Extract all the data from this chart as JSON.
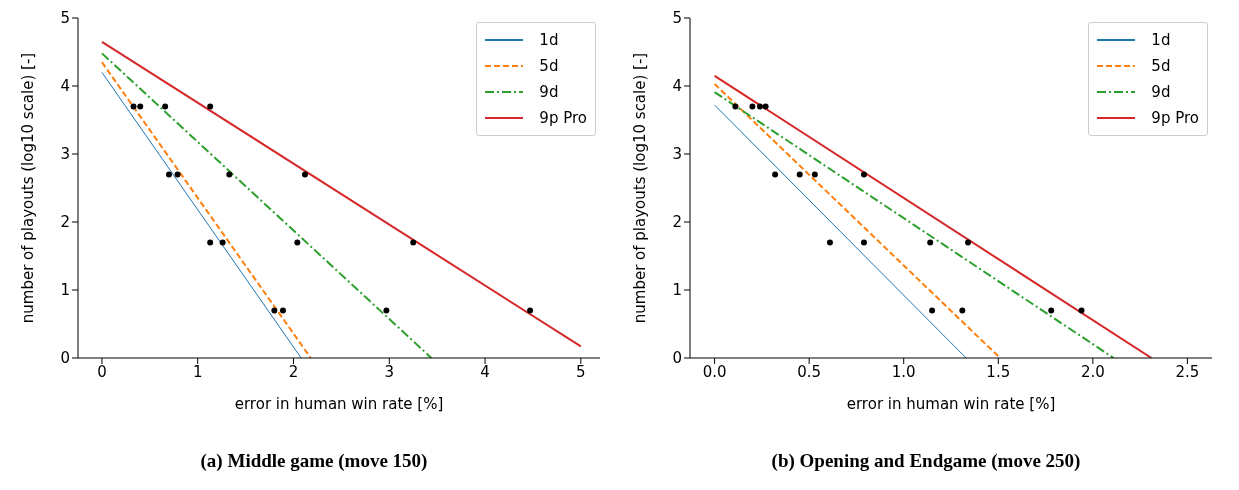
{
  "chart_data": [
    {
      "type": "line",
      "title": "(a) Middle game (move 150)",
      "xlabel": "error in human win rate [%]",
      "ylabel": "number of playouts (log10 scale) [-]",
      "xlim": [
        -0.25,
        5.2
      ],
      "ylim": [
        0,
        5
      ],
      "xticks": [
        0,
        1,
        2,
        3,
        4,
        5
      ],
      "yticks": [
        0,
        1,
        2,
        3,
        4,
        5
      ],
      "grid": false,
      "legend": "top right",
      "marker": "none",
      "series": [
        {
          "name": "1d",
          "color": "#1f77b4",
          "line_style": "solid",
          "x": [
            0,
            2.08
          ],
          "values": [
            4.2,
            0
          ]
        },
        {
          "name": "5d",
          "color": "#ff7f0e",
          "line_style": "dashed",
          "x": [
            0,
            2.18
          ],
          "values": [
            4.35,
            0
          ]
        },
        {
          "name": "9d",
          "color": "#2ca02c",
          "line_style": "dashdot",
          "x": [
            0,
            3.44
          ],
          "values": [
            4.48,
            0
          ]
        },
        {
          "name": "9p Pro",
          "color": "#d62728",
          "line_style": "solid",
          "x": [
            0,
            5
          ],
          "values": [
            4.65,
            0.17
          ]
        },
        {
          "type": "scatter",
          "color": "#000000",
          "marker": "circle",
          "x": [
            0.33,
            0.4,
            0.66,
            1.13,
            0.7,
            0.79,
            1.33,
            2.12,
            1.13,
            1.26,
            2.04,
            3.25,
            1.8,
            1.89,
            2.97,
            4.47
          ],
          "values": [
            3.7,
            3.7,
            3.7,
            3.7,
            2.7,
            2.7,
            2.7,
            2.7,
            1.7,
            1.7,
            1.7,
            1.7,
            0.7,
            0.7,
            0.7,
            0.7
          ]
        }
      ]
    },
    {
      "type": "line",
      "title": "(b) Opening and Endgame (move 250)",
      "xlabel": "error in human win rate [%]",
      "ylabel": "number of playouts (log10 scale) [-]",
      "xlim": [
        -0.13,
        2.63
      ],
      "ylim": [
        0,
        5
      ],
      "xticks": [
        {
          "value": 0,
          "label": "0.0"
        },
        {
          "value": 0.5,
          "label": "0.5"
        },
        {
          "value": 1,
          "label": "1.0"
        },
        {
          "value": 1.5,
          "label": "1.5"
        },
        {
          "value": 2,
          "label": "2.0"
        },
        {
          "value": 2.5,
          "label": "2.5"
        }
      ],
      "yticks": [
        0,
        1,
        2,
        3,
        4,
        5
      ],
      "grid": false,
      "legend": "top right",
      "marker": "none",
      "series": [
        {
          "name": "1d",
          "color": "#1f77b4",
          "line_style": "solid",
          "x": [
            0,
            1.33
          ],
          "values": [
            3.72,
            0
          ]
        },
        {
          "name": "5d",
          "color": "#ff7f0e",
          "line_style": "dashed",
          "x": [
            0,
            1.51
          ],
          "values": [
            4.03,
            0
          ]
        },
        {
          "name": "9d",
          "color": "#2ca02c",
          "line_style": "dashdot",
          "x": [
            0,
            2.11
          ],
          "values": [
            3.91,
            0
          ]
        },
        {
          "name": "9p Pro",
          "color": "#d62728",
          "line_style": "solid",
          "x": [
            0,
            2.31
          ],
          "values": [
            4.15,
            0
          ]
        },
        {
          "type": "scatter",
          "color": "#000000",
          "marker": "circle",
          "x": [
            0.11,
            0.2,
            0.24,
            0.27,
            0.32,
            0.45,
            0.53,
            0.79,
            0.61,
            0.79,
            1.14,
            1.34,
            1.15,
            1.31,
            1.78,
            1.94
          ],
          "values": [
            3.7,
            3.7,
            3.7,
            3.7,
            2.7,
            2.7,
            2.7,
            2.7,
            1.7,
            1.7,
            1.7,
            1.7,
            0.7,
            0.7,
            0.7,
            0.7
          ]
        }
      ]
    }
  ]
}
